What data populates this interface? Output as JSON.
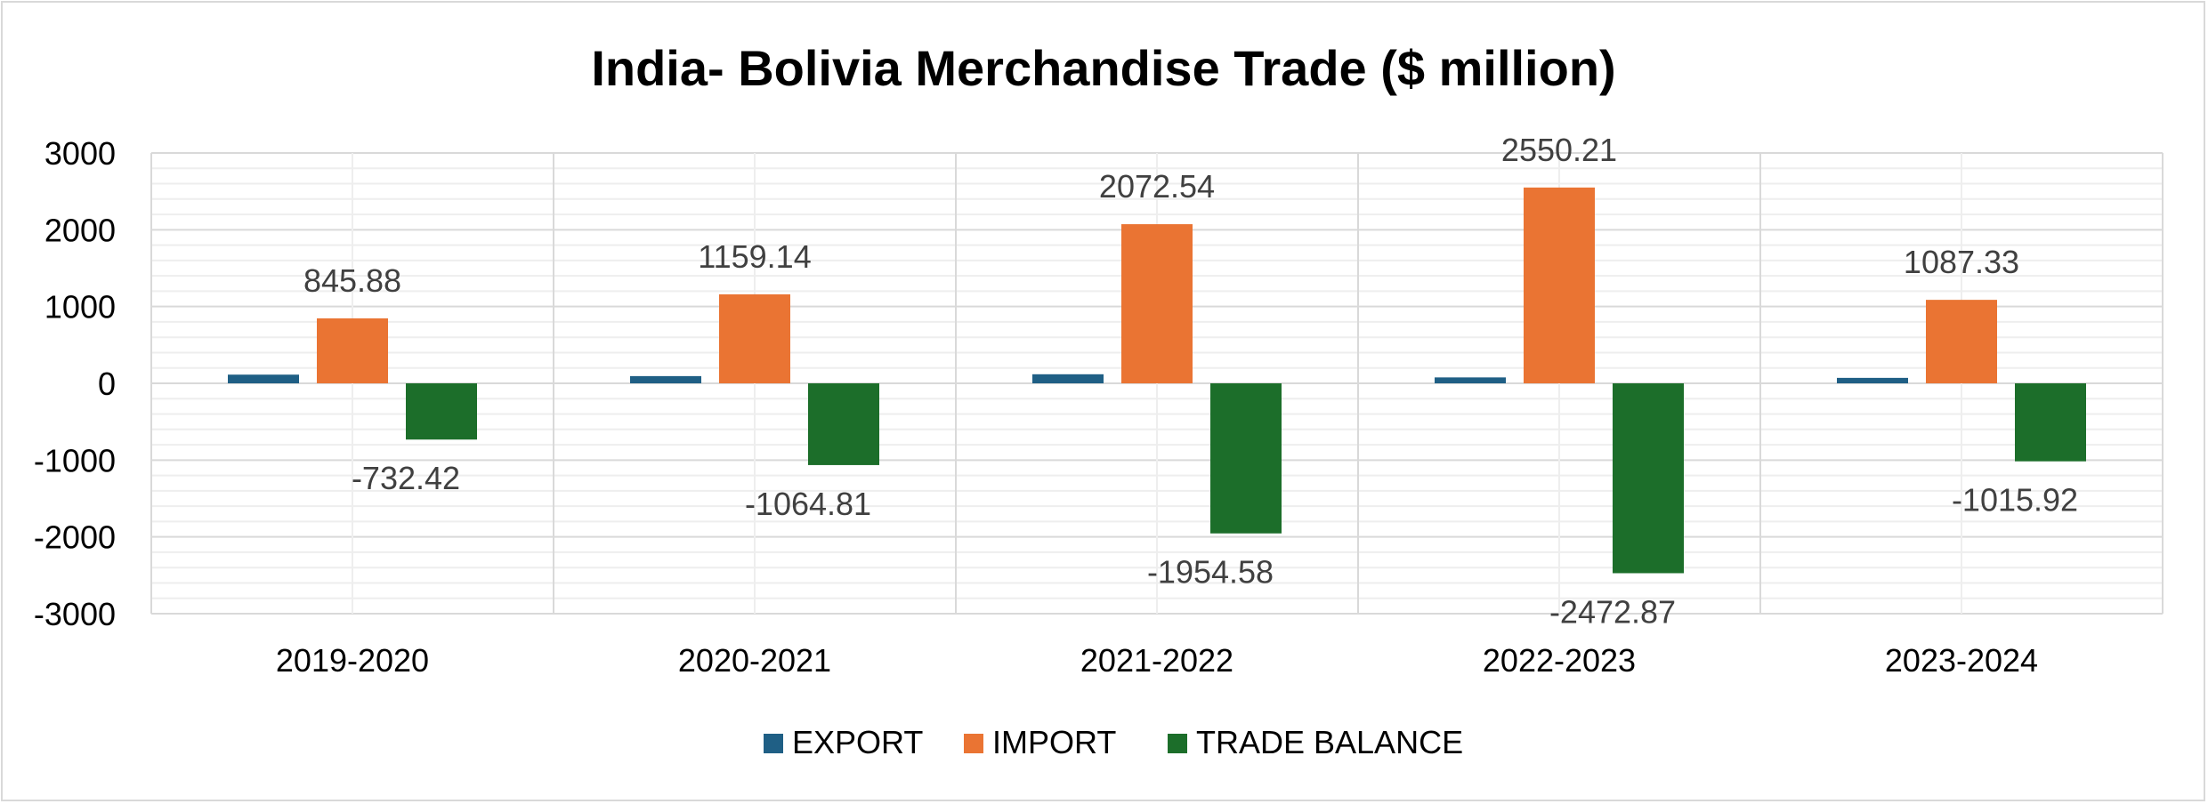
{
  "chart_data": {
    "type": "bar",
    "title": "India- Bolivia Merchandise Trade ($ million)",
    "xlabel": "",
    "ylabel": "",
    "categories": [
      "2019-2020",
      "2020-2021",
      "2021-2022",
      "2022-2023",
      "2023-2024"
    ],
    "series": [
      {
        "name": "EXPORT",
        "color": "#1f5f85",
        "values": [
          113,
          94,
          118,
          77,
          71
        ]
      },
      {
        "name": "IMPORT",
        "color": "#ea7433",
        "values": [
          845.88,
          1159.14,
          2072.54,
          2550.21,
          1087.33
        ]
      },
      {
        "name": "TRADE BALANCE",
        "color": "#1c6e2a",
        "values": [
          -732.42,
          -1064.81,
          -1954.58,
          -2472.87,
          -1015.92
        ]
      }
    ],
    "data_labels": {
      "IMPORT": [
        "845.88",
        "1159.14",
        "2072.54",
        "2550.21",
        "1087.33"
      ],
      "TRADE BALANCE": [
        "-732.42",
        "-1064.81",
        "-1954.58",
        "-2472.87",
        "-1015.92"
      ]
    },
    "ylim": [
      -3000,
      3000
    ],
    "yticks": [
      3000,
      2000,
      1000,
      0,
      -1000,
      -2000,
      -3000
    ],
    "grid": true,
    "legend": "bottom"
  }
}
